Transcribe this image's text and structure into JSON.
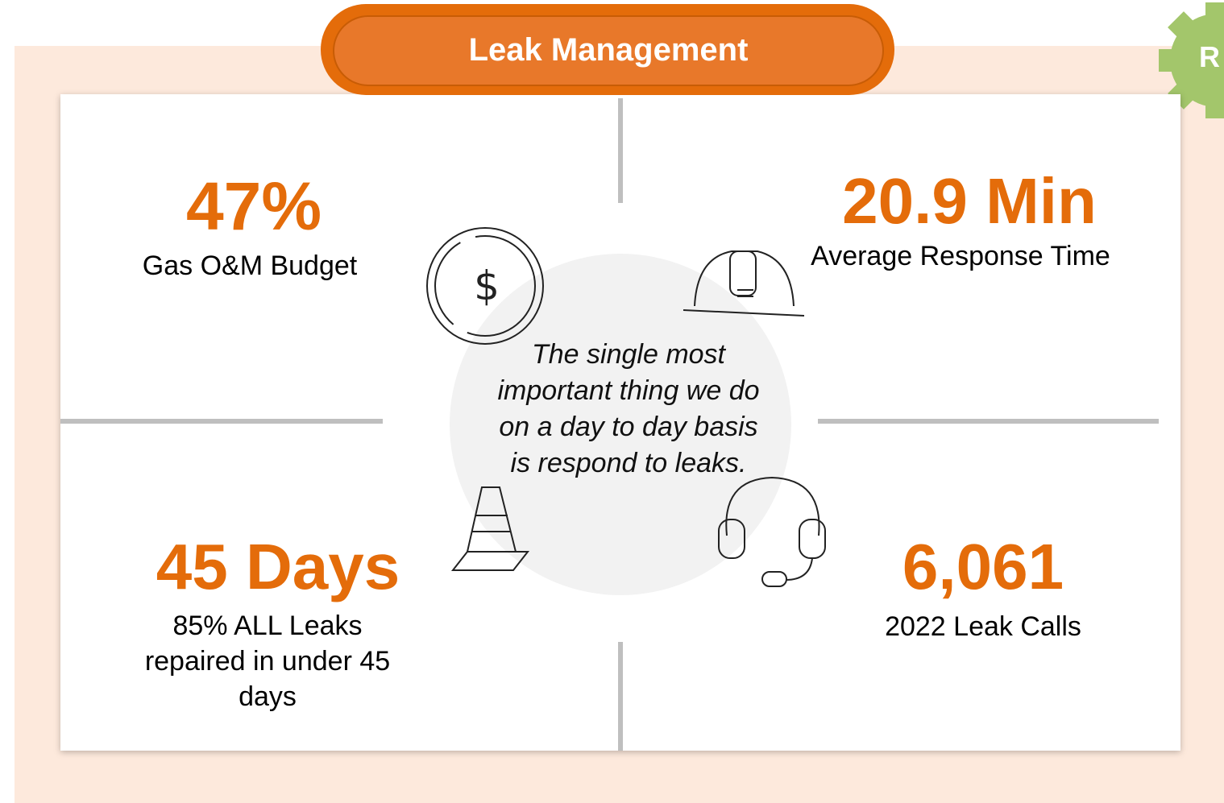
{
  "header": {
    "title": "Leak Management",
    "badge": "R"
  },
  "quadrants": [
    {
      "stat": "47%",
      "label": "Gas O&M Budget"
    },
    {
      "stat": "20.9 Min",
      "label": "Average Response Time"
    },
    {
      "stat": "45 Days",
      "label": "85%  ALL Leaks repaired in under 45 days"
    },
    {
      "stat": "6,061",
      "label": "2022 Leak Calls"
    }
  ],
  "center": {
    "quote": "The single most important thing we do on a day to day basis is respond to leaks."
  }
}
